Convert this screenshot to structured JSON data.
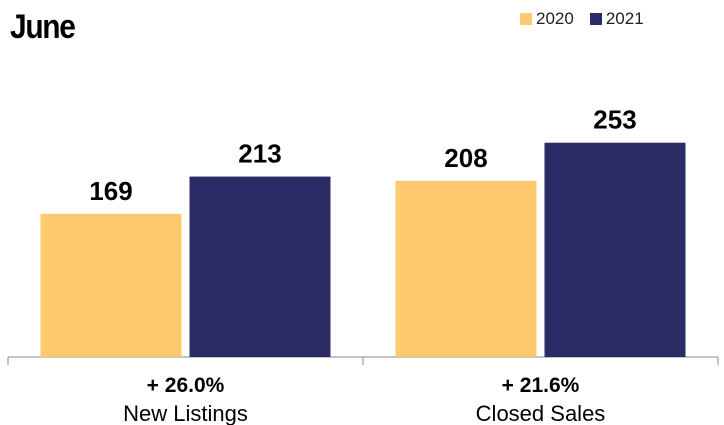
{
  "chart_data": {
    "type": "bar",
    "title": "June",
    "categories": [
      "New Listings",
      "Closed Sales"
    ],
    "change_labels": [
      "+ 26.0%",
      "+ 21.6%"
    ],
    "series": [
      {
        "name": "2020",
        "values": [
          169,
          208
        ],
        "color": "#FFC96F"
      },
      {
        "name": "2021",
        "values": [
          213,
          253
        ],
        "color": "#2B2B66"
      }
    ],
    "ylim": [
      0,
      300
    ],
    "grid": false,
    "legend_position": "top-right"
  }
}
